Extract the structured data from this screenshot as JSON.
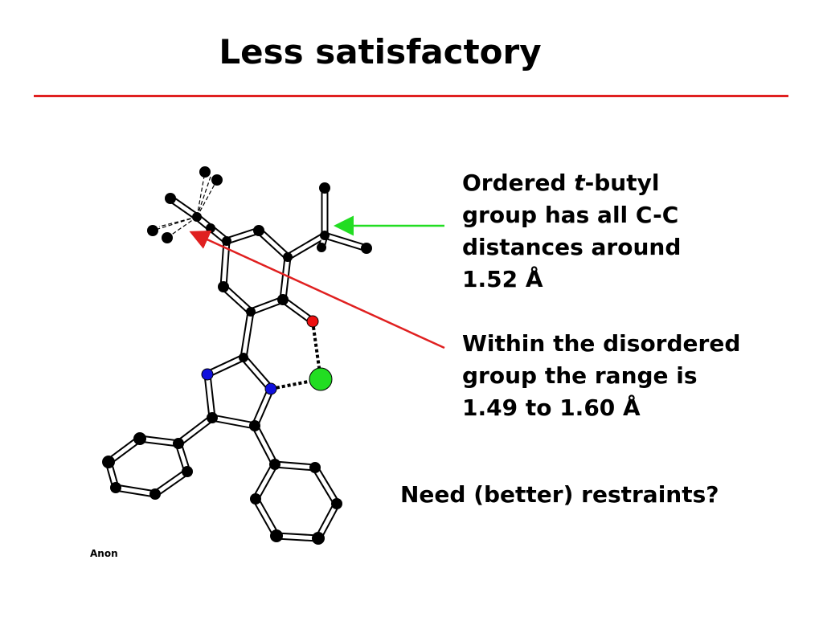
{
  "slide": {
    "title": "Less satisfactory",
    "note_ordered_lines": [
      "Ordered ",
      "t",
      "-butyl",
      "group has all C-C",
      "distances around",
      "1.52 Å"
    ],
    "note_disordered_lines": [
      "Within the disordered",
      "group the range is",
      "1.49 to 1.60 Å"
    ],
    "question": "Need (better) restraints?",
    "credit": "Anon"
  },
  "colors": {
    "title_rule": "#e02020",
    "arrow_green": "#22dd22",
    "arrow_red": "#e02020",
    "atom_carbon": "#000000",
    "atom_nitrogen": "#1010dd",
    "atom_oxygen": "#ee1010",
    "atom_chlorine": "#22dd22"
  }
}
